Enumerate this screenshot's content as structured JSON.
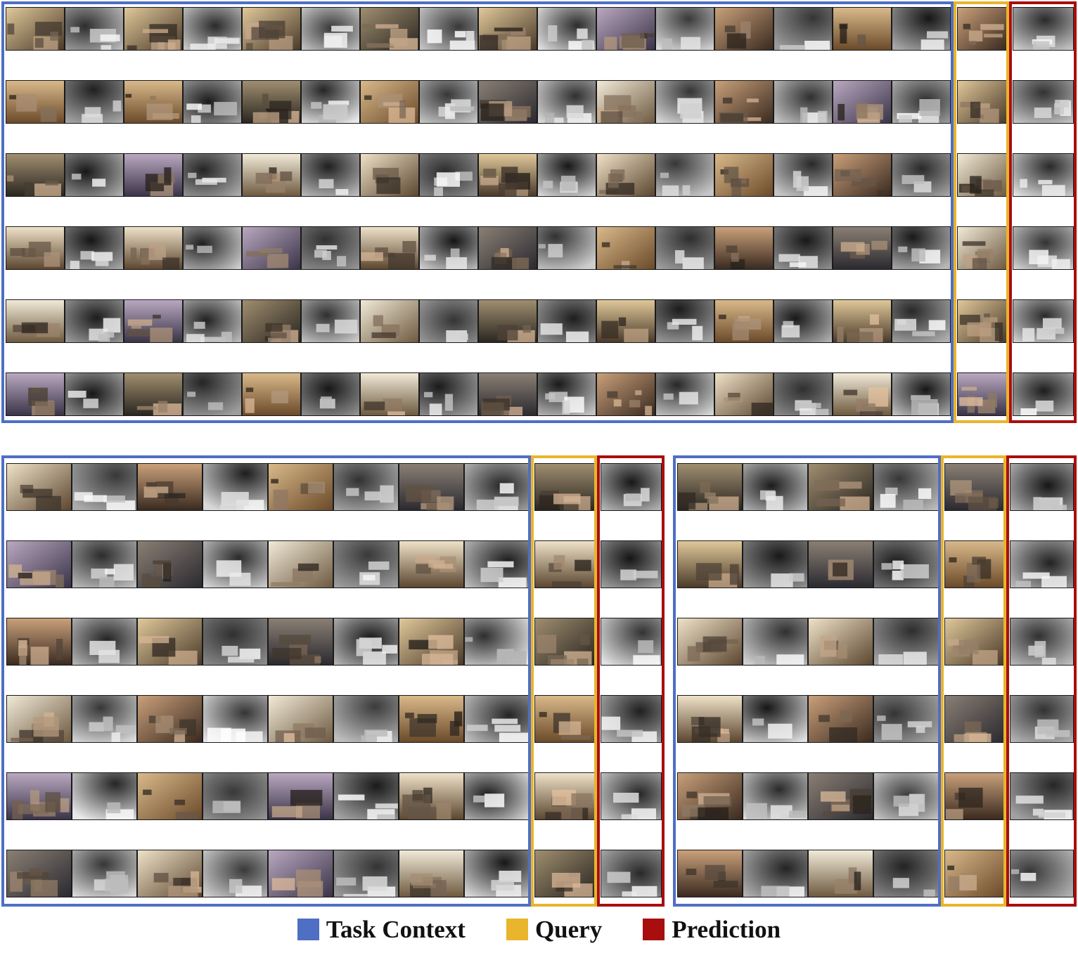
{
  "legend": {
    "items": [
      {
        "label": "Task Context",
        "color": "#4F6FC4"
      },
      {
        "label": "Query",
        "color": "#E8B52C"
      },
      {
        "label": "Prediction",
        "color": "#A80E0E"
      }
    ]
  },
  "frame_colors": {
    "context": "#4F6FC4",
    "query": "#E8B52C",
    "prediction": "#A80E0E"
  },
  "panels": [
    {
      "name": "panel-top",
      "rows": 6,
      "context_pairs": 8
    },
    {
      "name": "panel-bottom-left",
      "rows": 6,
      "context_pairs": 4
    },
    {
      "name": "panel-bottom-right",
      "rows": 6,
      "context_pairs": 2
    }
  ]
}
